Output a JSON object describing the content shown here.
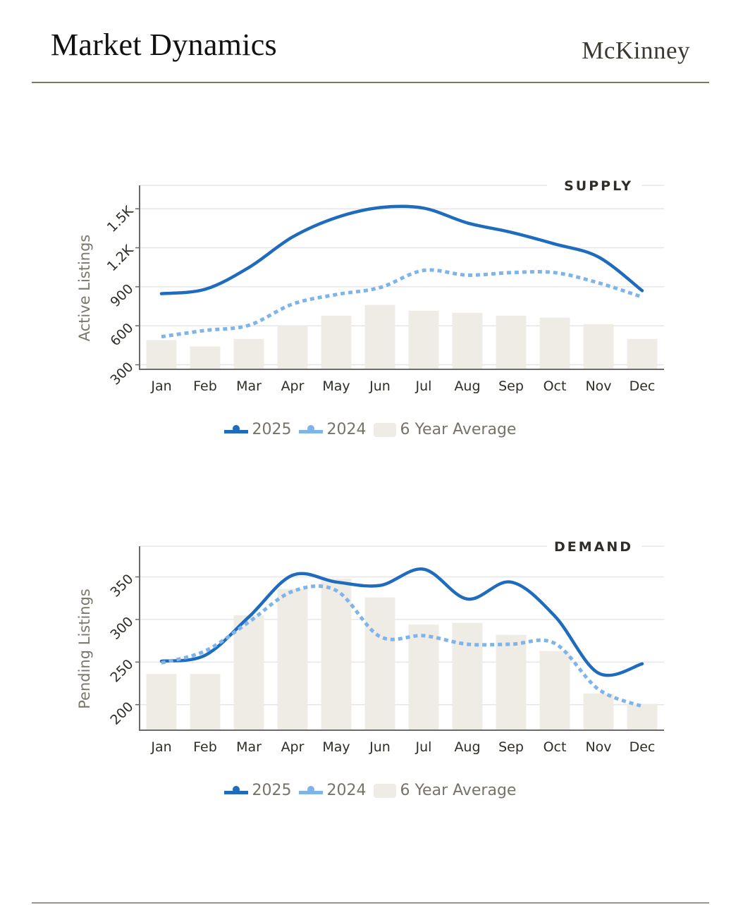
{
  "header": {
    "title": "Market Dynamics",
    "city": "McKinney"
  },
  "colors": {
    "series_2025": "#1f6bbd",
    "series_2024": "#7fb4ea",
    "average_bar": "#efece5",
    "rule": "#7b7763"
  },
  "chart_data": [
    {
      "type": "line+bar",
      "section_label": "SUPPLY",
      "ylabel": "Active Listings",
      "xlabel": "",
      "categories": [
        "Jan",
        "Feb",
        "Mar",
        "Apr",
        "May",
        "Jun",
        "Jul",
        "Aug",
        "Sep",
        "Oct",
        "Nov",
        "Dec"
      ],
      "ylim": [
        265,
        1680
      ],
      "yticks": [
        300,
        600,
        900,
        1200,
        1500
      ],
      "ytick_labels": [
        "300",
        "600",
        "900",
        "1.2K",
        "1.5K"
      ],
      "grid": true,
      "legend_position": "bottom-center",
      "series": [
        {
          "name": "2025",
          "kind": "line",
          "style": "solid",
          "values": [
            847,
            881,
            1048,
            1283,
            1432,
            1509,
            1505,
            1391,
            1319,
            1229,
            1129,
            870
          ]
        },
        {
          "name": "2024",
          "kind": "line",
          "style": "dotted",
          "values": [
            516,
            564,
            604,
            767,
            840,
            894,
            1026,
            990,
            1009,
            1009,
            930,
            821
          ]
        },
        {
          "name": "6 Year Average",
          "kind": "bar",
          "values": [
            490,
            441,
            499,
            599,
            678,
            760,
            716,
            700,
            678,
            662,
            613,
            499
          ]
        }
      ]
    },
    {
      "type": "line+bar",
      "section_label": "DEMAND",
      "ylabel": "Pending Listings",
      "xlabel": "",
      "categories": [
        "Jan",
        "Feb",
        "Mar",
        "Apr",
        "May",
        "Jun",
        "Jul",
        "Aug",
        "Sep",
        "Oct",
        "Nov",
        "Dec"
      ],
      "ylim": [
        170,
        386
      ],
      "yticks": [
        200,
        250,
        300,
        350
      ],
      "ytick_labels": [
        "200",
        "250",
        "300",
        "350"
      ],
      "grid": true,
      "legend_position": "bottom-center",
      "series": [
        {
          "name": "2025",
          "kind": "line",
          "style": "solid",
          "values": [
            251,
            258,
            303,
            352,
            344,
            340,
            359,
            324,
            344,
            304,
            237,
            248
          ]
        },
        {
          "name": "2024",
          "kind": "line",
          "style": "dotted",
          "values": [
            249,
            263,
            297,
            333,
            334,
            280,
            281,
            271,
            271,
            272,
            218,
            198
          ]
        },
        {
          "name": "6 Year Average",
          "kind": "bar",
          "values": [
            236,
            236,
            305,
            336,
            348,
            326,
            294,
            296,
            282,
            263,
            213,
            201
          ]
        }
      ]
    }
  ],
  "legends": [
    {
      "items": [
        "2025",
        "2024",
        "6 Year Average"
      ]
    },
    {
      "items": [
        "2025",
        "2024",
        "6 Year Average"
      ]
    }
  ]
}
